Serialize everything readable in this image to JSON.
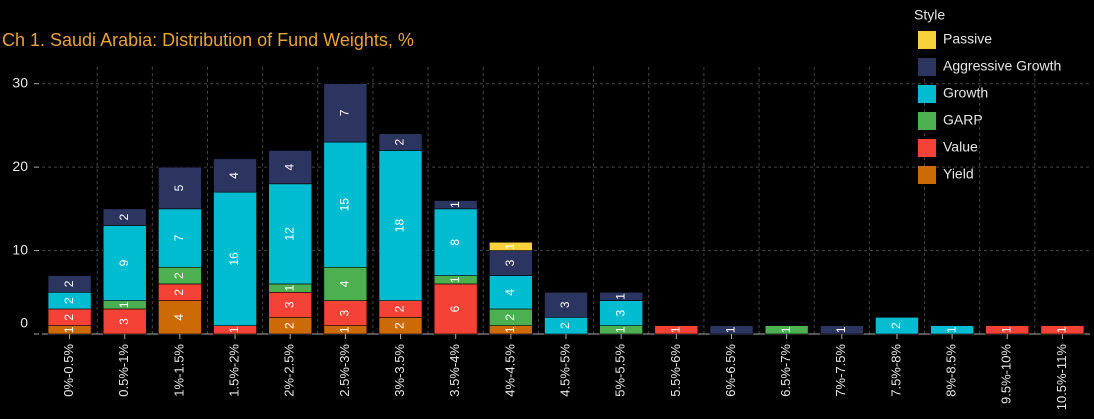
{
  "chart_data": {
    "type": "stacked_bar",
    "title": "Ch 1. Saudi Arabia:  Distribution of Fund Weights, %",
    "legend_title": "Style",
    "categories": [
      "0%-0.5%",
      "0.5%-1%",
      "1%-1.5%",
      "1.5%-2%",
      "2%-2.5%",
      "2.5%-3%",
      "3%-3.5%",
      "3.5%-4%",
      "4%-4.5%",
      "4.5%-5%",
      "5%-5.5%",
      "5.5%-6%",
      "6%-6.5%",
      "6.5%-7%",
      "7%-7.5%",
      "7.5%-8%",
      "8%-8.5%",
      "9.5%-10%",
      "10.5%-11%"
    ],
    "series": [
      {
        "name": "Yield",
        "color": "#cc6a06",
        "values": [
          1,
          0,
          4,
          0,
          2,
          1,
          2,
          0,
          1,
          0,
          0,
          0,
          0,
          0,
          0,
          0,
          0,
          0,
          0
        ]
      },
      {
        "name": "Value",
        "color": "#f44336",
        "values": [
          2,
          3,
          2,
          1,
          3,
          3,
          2,
          6,
          0,
          0,
          0,
          1,
          0,
          0,
          0,
          0,
          0,
          1,
          1
        ]
      },
      {
        "name": "GARP",
        "color": "#4caf50",
        "values": [
          0,
          1,
          2,
          0,
          1,
          4,
          0,
          1,
          2,
          0,
          1,
          0,
          0,
          1,
          0,
          0,
          0,
          0,
          0
        ]
      },
      {
        "name": "Growth",
        "color": "#00bcd0",
        "values": [
          2,
          9,
          7,
          16,
          12,
          15,
          18,
          8,
          4,
          2,
          3,
          0,
          0,
          0,
          0,
          2,
          1,
          0,
          0
        ]
      },
      {
        "name": "Aggressive Growth",
        "color": "#2b3560",
        "values": [
          2,
          2,
          5,
          4,
          4,
          7,
          2,
          1,
          3,
          3,
          1,
          0,
          1,
          0,
          1,
          0,
          0,
          0,
          0
        ]
      },
      {
        "name": "Passive",
        "color": "#f9d13a",
        "values": [
          0,
          0,
          0,
          0,
          0,
          0,
          0,
          0,
          1,
          0,
          0,
          0,
          0,
          0,
          0,
          0,
          0,
          0,
          0
        ]
      }
    ],
    "ylim": [
      0,
      32
    ],
    "yticks": [
      0,
      10,
      20,
      30
    ],
    "grid": true
  }
}
